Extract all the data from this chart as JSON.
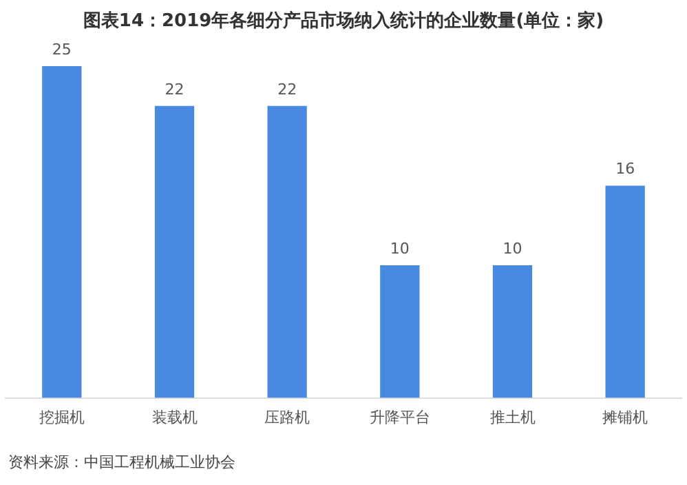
{
  "chart_data": {
    "type": "bar",
    "title": "图表14：2019年各细分产品市场纳入统计的企业数量(单位：家)",
    "categories": [
      "挖掘机",
      "装载机",
      "压路机",
      "升降平台",
      "推土机",
      "摊铺机"
    ],
    "values": [
      25,
      22,
      22,
      10,
      10,
      16
    ],
    "color": "#4a89e0",
    "data_labels": true,
    "grid": false,
    "legend": false,
    "annotations": [
      "资料来源：中国工程机械工业协会"
    ]
  }
}
